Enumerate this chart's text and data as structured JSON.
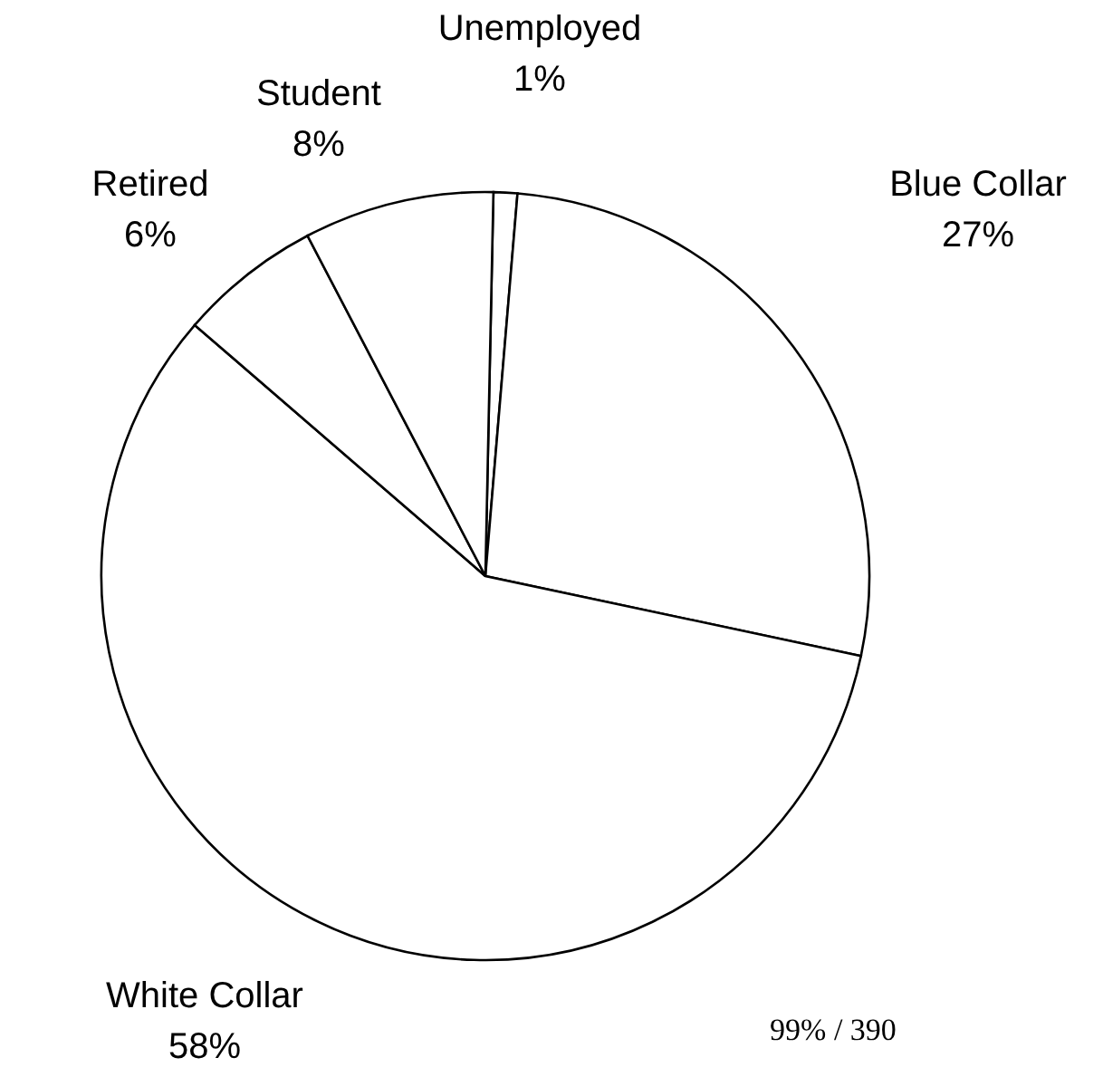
{
  "chart_data": {
    "type": "pie",
    "categories": [
      "Unemployed",
      "Blue Collar",
      "White Collar",
      "Retired",
      "Student"
    ],
    "values": [
      1,
      27,
      58,
      6,
      8
    ],
    "colors": [
      "#ffffff",
      "#ffffff",
      "#ffffff",
      "#ffffff",
      "#ffffff"
    ],
    "value_labels": [
      "1%",
      "27%",
      "58%",
      "6%",
      "8%"
    ],
    "annotations": [
      "99% / 390"
    ]
  }
}
